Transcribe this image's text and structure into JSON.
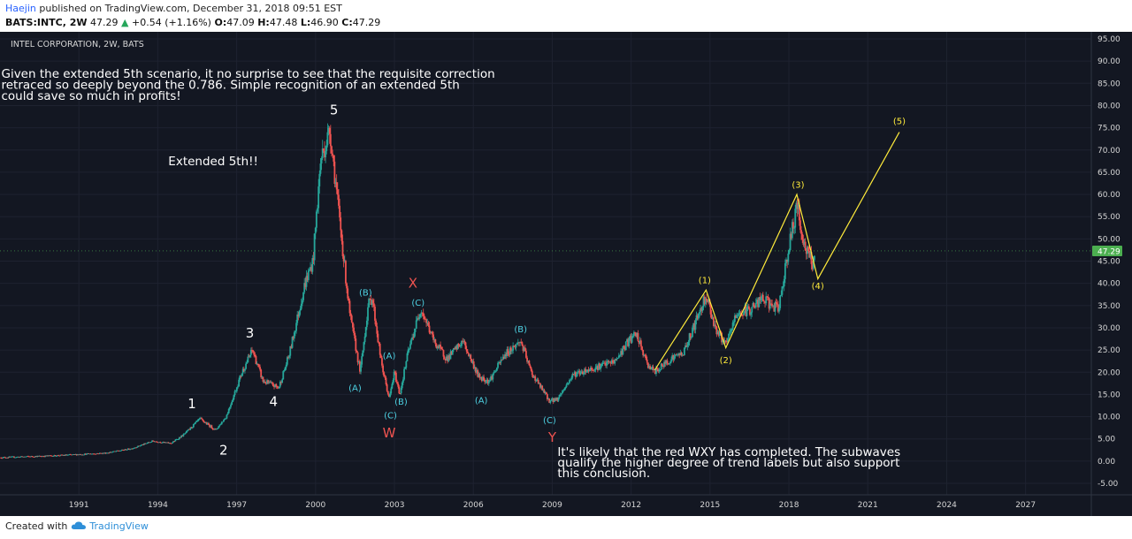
{
  "header": {
    "author": "Haejin",
    "published": "published on TradingView.com, December 31, 2018 09:51 EST",
    "symbol": "BATS:INTC, 2W",
    "last": "47.29",
    "up_arrow": "▲",
    "change": "+0.54 (+1.16%)",
    "o_label": "O:",
    "o_value": "47.09",
    "h_label": "H:",
    "h_value": "47.48",
    "l_label": "L:",
    "l_value": "46.90",
    "c_label": "C:",
    "c_value": "47.29"
  },
  "footer": {
    "created_with": "Created with",
    "brand": "TradingView",
    "logo_icon": "tradingview-cloud-icon"
  },
  "colors": {
    "background": "#131722",
    "up": "#26a69a",
    "down": "#ef5350",
    "wave_main": "#ffffff",
    "wave_blue": "#4dd0e1",
    "wave_red": "#ef5350",
    "wave_yellow": "#ffeb3b",
    "price_tag": "#4caf50"
  },
  "chart_data": {
    "type": "candlestick",
    "title": "INTEL CORPORATION, 2W, BATS",
    "x_ticks": [
      "1991",
      "1994",
      "1997",
      "2000",
      "2003",
      "2006",
      "2009",
      "2012",
      "2015",
      "2018",
      "2021",
      "2024",
      "2027"
    ],
    "y_ticks": [
      "95.00",
      "90.00",
      "85.00",
      "80.00",
      "75.00",
      "70.00",
      "65.00",
      "60.00",
      "55.00",
      "50.00",
      "45.00",
      "40.00",
      "35.00",
      "30.00",
      "25.00",
      "20.00",
      "15.00",
      "10.00",
      "5.00",
      "0.00",
      "-5.00"
    ],
    "ylim": [
      -5,
      95
    ],
    "xlim": [
      1988.0,
      2029.5
    ],
    "last_price": "47.29",
    "price_path": [
      [
        1988.0,
        0.8
      ],
      [
        1990.0,
        1.2
      ],
      [
        1992.0,
        1.8
      ],
      [
        1993.0,
        2.8
      ],
      [
        1993.8,
        4.5
      ],
      [
        1994.5,
        4.0
      ],
      [
        1995.0,
        6.0
      ],
      [
        1995.6,
        9.5
      ],
      [
        1996.2,
        7.0
      ],
      [
        1996.6,
        10.0
      ],
      [
        1997.2,
        20.0
      ],
      [
        1997.6,
        25.0
      ],
      [
        1998.0,
        18.0
      ],
      [
        1998.6,
        16.5
      ],
      [
        1999.0,
        24.0
      ],
      [
        1999.6,
        40.0
      ],
      [
        1999.9,
        45.0
      ],
      [
        2000.2,
        68.0
      ],
      [
        2000.55,
        74.5
      ],
      [
        2000.9,
        55.0
      ],
      [
        2001.3,
        33.0
      ],
      [
        2001.7,
        20.0
      ],
      [
        2002.0,
        35.0
      ],
      [
        2002.15,
        37.0
      ],
      [
        2002.5,
        22.0
      ],
      [
        2002.8,
        14.0
      ],
      [
        2003.0,
        20.0
      ],
      [
        2003.2,
        15.0
      ],
      [
        2003.5,
        24.0
      ],
      [
        2004.0,
        34.5
      ],
      [
        2004.5,
        27.0
      ],
      [
        2005.0,
        23.0
      ],
      [
        2005.6,
        27.0
      ],
      [
        2006.2,
        19.0
      ],
      [
        2006.6,
        18.0
      ],
      [
        2007.2,
        24.0
      ],
      [
        2007.8,
        27.0
      ],
      [
        2008.2,
        20.0
      ],
      [
        2008.9,
        13.5
      ],
      [
        2009.2,
        14.0
      ],
      [
        2009.8,
        19.5
      ],
      [
        2010.6,
        21.0
      ],
      [
        2011.4,
        22.5
      ],
      [
        2011.9,
        27.0
      ],
      [
        2012.2,
        28.5
      ],
      [
        2012.6,
        22.0
      ],
      [
        2012.9,
        20.0
      ],
      [
        2013.5,
        23.0
      ],
      [
        2014.0,
        24.5
      ],
      [
        2014.5,
        32.0
      ],
      [
        2014.85,
        37.5
      ],
      [
        2015.2,
        30.0
      ],
      [
        2015.6,
        26.0
      ],
      [
        2016.0,
        33.0
      ],
      [
        2016.5,
        34.0
      ],
      [
        2017.0,
        36.5
      ],
      [
        2017.6,
        34.0
      ],
      [
        2017.9,
        45.0
      ],
      [
        2018.3,
        57.5
      ],
      [
        2018.6,
        48.0
      ],
      [
        2018.9,
        44.5
      ],
      [
        2019.0,
        47.3
      ]
    ],
    "annotations": [
      {
        "text": "Given the extended 5th scenario, it no surprise to see that the requisite correction",
        "x": 1988.05,
        "y": 86.3
      },
      {
        "text": "retraced so deeply beyond the 0.786. Simple recognition of an extended 5th",
        "x": 1988.05,
        "y": 83.8
      },
      {
        "text": "could save so much in profits!",
        "x": 1988.05,
        "y": 81.3
      },
      {
        "text": "Extended 5th!!",
        "x": 1994.4,
        "y": 66.6
      },
      {
        "text": "It's likely that the red WXY has completed. The subwaves",
        "x": 2009.2,
        "y": 1.2
      },
      {
        "text": "qualify the higher degree of trend labels but also support",
        "x": 2009.2,
        "y": -1.2
      },
      {
        "text": "this conclusion.",
        "x": 2009.2,
        "y": -3.6
      }
    ],
    "wave_labels": [
      {
        "text": "1",
        "x": 1995.3,
        "y": 11.9,
        "color": "main",
        "size": 15
      },
      {
        "text": "2",
        "x": 1996.5,
        "y": 1.5,
        "color": "main",
        "size": 15
      },
      {
        "text": "3",
        "x": 1997.5,
        "y": 27.8,
        "color": "main",
        "size": 15
      },
      {
        "text": "4",
        "x": 1998.4,
        "y": 12.4,
        "color": "main",
        "size": 15
      },
      {
        "text": "5",
        "x": 2000.7,
        "y": 78.0,
        "color": "main",
        "size": 15
      },
      {
        "text": "(B)",
        "x": 2001.9,
        "y": 37.2,
        "color": "blue",
        "size": 10
      },
      {
        "text": "(A)",
        "x": 2001.5,
        "y": 15.8,
        "color": "blue",
        "size": 10
      },
      {
        "text": "(A)",
        "x": 2002.8,
        "y": 23.0,
        "color": "blue",
        "size": 10
      },
      {
        "text": "(B)",
        "x": 2003.25,
        "y": 12.7,
        "color": "blue",
        "size": 10
      },
      {
        "text": "(C)",
        "x": 2002.85,
        "y": 9.6,
        "color": "blue",
        "size": 10
      },
      {
        "text": "W",
        "x": 2002.8,
        "y": 5.3,
        "color": "red",
        "size": 15
      },
      {
        "text": "X",
        "x": 2003.7,
        "y": 39.0,
        "color": "red",
        "size": 15
      },
      {
        "text": "(C)",
        "x": 2003.9,
        "y": 35.0,
        "color": "blue",
        "size": 10
      },
      {
        "text": "(A)",
        "x": 2006.3,
        "y": 13.0,
        "color": "blue",
        "size": 10
      },
      {
        "text": "(B)",
        "x": 2007.8,
        "y": 29.0,
        "color": "blue",
        "size": 10
      },
      {
        "text": "(C)",
        "x": 2008.9,
        "y": 8.5,
        "color": "blue",
        "size": 10
      },
      {
        "text": "Y",
        "x": 2009.0,
        "y": 4.3,
        "color": "red",
        "size": 15
      },
      {
        "text": "(1)",
        "x": 2014.8,
        "y": 40.0,
        "color": "yellow",
        "size": 10
      },
      {
        "text": "(2)",
        "x": 2015.6,
        "y": 22.0,
        "color": "yellow",
        "size": 10
      },
      {
        "text": "(3)",
        "x": 2018.35,
        "y": 61.5,
        "color": "yellow",
        "size": 10
      },
      {
        "text": "(4)",
        "x": 2019.1,
        "y": 38.7,
        "color": "yellow",
        "size": 10
      },
      {
        "text": "(5)",
        "x": 2022.2,
        "y": 75.8,
        "color": "yellow",
        "size": 10
      }
    ],
    "wave_path": [
      [
        2012.9,
        20.5
      ],
      [
        2014.85,
        38.5
      ],
      [
        2015.6,
        25.5
      ],
      [
        2018.3,
        60.0
      ],
      [
        2019.1,
        41.0
      ],
      [
        2022.2,
        74.0
      ]
    ]
  }
}
